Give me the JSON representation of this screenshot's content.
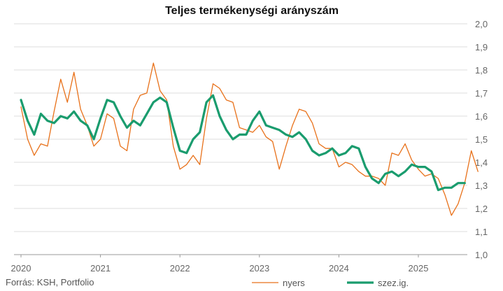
{
  "chart_data": {
    "type": "line",
    "title": "Teljes termékenységi arányszám",
    "source": "Forrás: KSH, Portfolio",
    "ylim": [
      1.0,
      2.0
    ],
    "yticks": [
      "2,0",
      "1,9",
      "1,8",
      "1,7",
      "1,6",
      "1,5",
      "1,4",
      "1,3",
      "1,2",
      "1,1",
      "1,0"
    ],
    "xticks": [
      "2020",
      "2021",
      "2022",
      "2023",
      "2024",
      "2025"
    ],
    "y_axis_side": "right",
    "grid": true,
    "legend_position": "bottom-right",
    "series": [
      {
        "name": "nyers",
        "color": "#e8711a",
        "values": [
          1.64,
          1.5,
          1.43,
          1.48,
          1.47,
          1.62,
          1.76,
          1.66,
          1.79,
          1.63,
          1.56,
          1.47,
          1.5,
          1.61,
          1.59,
          1.47,
          1.45,
          1.63,
          1.69,
          1.7,
          1.83,
          1.71,
          1.67,
          1.47,
          1.37,
          1.39,
          1.43,
          1.39,
          1.59,
          1.74,
          1.72,
          1.67,
          1.66,
          1.55,
          1.54,
          1.53,
          1.56,
          1.51,
          1.49,
          1.37,
          1.47,
          1.56,
          1.63,
          1.62,
          1.57,
          1.48,
          1.46,
          1.46,
          1.38,
          1.4,
          1.39,
          1.36,
          1.34,
          1.34,
          1.33,
          1.3,
          1.44,
          1.43,
          1.48,
          1.41,
          1.37,
          1.34,
          1.35,
          1.33,
          1.26,
          1.17,
          1.22,
          1.31,
          1.45,
          1.36
        ]
      },
      {
        "name": "szez.ig.",
        "color": "#1a9c6e",
        "values": [
          1.67,
          1.58,
          1.52,
          1.61,
          1.58,
          1.57,
          1.6,
          1.59,
          1.62,
          1.58,
          1.56,
          1.5,
          1.59,
          1.67,
          1.66,
          1.6,
          1.55,
          1.58,
          1.56,
          1.61,
          1.66,
          1.68,
          1.66,
          1.55,
          1.45,
          1.44,
          1.5,
          1.53,
          1.66,
          1.69,
          1.6,
          1.54,
          1.5,
          1.52,
          1.52,
          1.58,
          1.62,
          1.56,
          1.55,
          1.54,
          1.52,
          1.51,
          1.53,
          1.5,
          1.45,
          1.43,
          1.44,
          1.46,
          1.43,
          1.44,
          1.47,
          1.46,
          1.38,
          1.33,
          1.31,
          1.35,
          1.36,
          1.34,
          1.36,
          1.39,
          1.38,
          1.38,
          1.36,
          1.28,
          1.29,
          1.29,
          1.31,
          1.31
        ]
      }
    ]
  }
}
